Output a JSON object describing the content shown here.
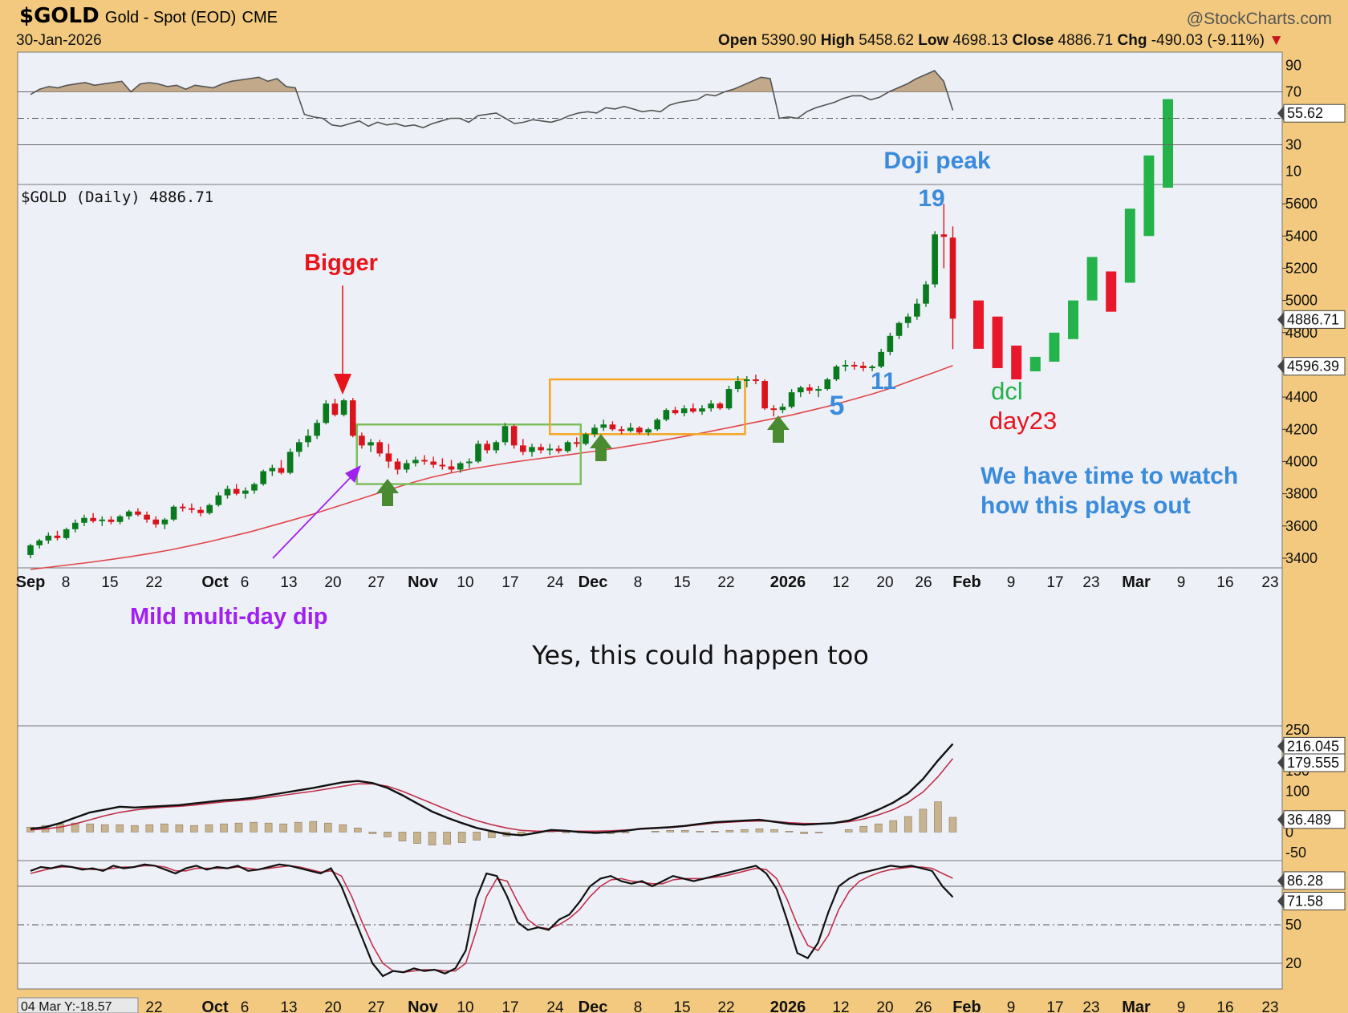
{
  "header": {
    "symbol": "$GOLD",
    "description": "Gold - Spot (EOD)",
    "exchange": "CME",
    "brand": "@StockCharts.com",
    "date": "30-Jan-2026",
    "open_label": "Open",
    "open": "5390.90",
    "high_label": "High",
    "high": "5458.62",
    "low_label": "Low",
    "low": "4698.13",
    "close_label": "Close",
    "close": "4886.71",
    "chg_label": "Chg",
    "chg": "-490.03 (-9.11%)"
  },
  "colors": {
    "panel_bg": "#eef0f8",
    "frame_bg": "#f2c97e",
    "up_candle": "#0a7a1e",
    "down_candle": "#d8141c",
    "proj_up": "#23b34a",
    "proj_down": "#e8172a",
    "ma": "#e04848",
    "green_box": "#7cbf5a",
    "orange_box": "#f5a623",
    "annot_blue": "#3a8bdc",
    "annot_red": "#e8141c",
    "annot_green": "#23b34a",
    "annot_purple": "#a020f0"
  },
  "chart_data": {
    "type": "candlestick",
    "price_label": "$GOLD (Daily) 4886.71",
    "x_labels": [
      "Sep",
      "8",
      "15",
      "22",
      "Oct",
      "6",
      "13",
      "20",
      "27",
      "Nov",
      "10",
      "17",
      "24",
      "Dec",
      "8",
      "15",
      "22",
      "2026",
      "12",
      "20",
      "26",
      "Feb",
      "9",
      "17",
      "23",
      "Mar",
      "9",
      "16",
      "23"
    ],
    "bold_x_labels": [
      "Sep",
      "Oct",
      "Nov",
      "Dec",
      "2026",
      "Feb",
      "Mar"
    ],
    "bottom_x_labels": [
      "22",
      "Oct",
      "6",
      "13",
      "20",
      "27",
      "Nov",
      "10",
      "17",
      "24",
      "Dec",
      "8",
      "15",
      "22",
      "2026",
      "12",
      "20",
      "26",
      "Feb",
      "9",
      "17",
      "23",
      "Mar",
      "9",
      "16",
      "23"
    ],
    "bottom_left_label": "04 Mar Y:-18.57",
    "price_ylim": [
      3340,
      5720
    ],
    "price_ticks": [
      3400,
      3600,
      3800,
      4000,
      4200,
      4400,
      4600,
      4800,
      5000,
      5200,
      5400,
      5600
    ],
    "price_tick_labels": [
      "3400",
      "3600",
      "3800",
      "4000",
      "4200",
      "4400",
      "",
      "4800",
      "5000",
      "5200",
      "5400",
      "5600"
    ],
    "last_price_label": "4886.71",
    "ma_value_label": "4596.39",
    "candles": [
      [
        3420,
        3490,
        3400,
        3480
      ],
      [
        3480,
        3520,
        3460,
        3510
      ],
      [
        3510,
        3560,
        3490,
        3540
      ],
      [
        3540,
        3570,
        3510,
        3525
      ],
      [
        3525,
        3590,
        3515,
        3580
      ],
      [
        3580,
        3640,
        3560,
        3620
      ],
      [
        3620,
        3670,
        3600,
        3650
      ],
      [
        3650,
        3680,
        3620,
        3630
      ],
      [
        3630,
        3660,
        3600,
        3640
      ],
      [
        3640,
        3660,
        3610,
        3625
      ],
      [
        3625,
        3670,
        3610,
        3660
      ],
      [
        3660,
        3700,
        3640,
        3690
      ],
      [
        3690,
        3710,
        3660,
        3670
      ],
      [
        3670,
        3690,
        3620,
        3640
      ],
      [
        3640,
        3660,
        3590,
        3610
      ],
      [
        3610,
        3650,
        3580,
        3640
      ],
      [
        3640,
        3730,
        3630,
        3720
      ],
      [
        3720,
        3740,
        3690,
        3710
      ],
      [
        3710,
        3740,
        3680,
        3700
      ],
      [
        3700,
        3720,
        3660,
        3680
      ],
      [
        3680,
        3740,
        3670,
        3730
      ],
      [
        3730,
        3810,
        3720,
        3790
      ],
      [
        3790,
        3850,
        3770,
        3830
      ],
      [
        3830,
        3860,
        3790,
        3800
      ],
      [
        3800,
        3840,
        3770,
        3820
      ],
      [
        3820,
        3870,
        3800,
        3860
      ],
      [
        3860,
        3950,
        3850,
        3940
      ],
      [
        3940,
        3980,
        3910,
        3960
      ],
      [
        3960,
        4010,
        3920,
        3930
      ],
      [
        3930,
        4080,
        3920,
        4060
      ],
      [
        4060,
        4140,
        4030,
        4120
      ],
      [
        4120,
        4200,
        4090,
        4160
      ],
      [
        4160,
        4260,
        4140,
        4240
      ],
      [
        4240,
        4380,
        4230,
        4360
      ],
      [
        4360,
        4390,
        4280,
        4290
      ],
      [
        4290,
        4390,
        4280,
        4380
      ],
      [
        4380,
        4395,
        4150,
        4160
      ],
      [
        4160,
        4180,
        4080,
        4100
      ],
      [
        4100,
        4140,
        4060,
        4120
      ],
      [
        4120,
        4135,
        4030,
        4050
      ],
      [
        4050,
        4110,
        3960,
        4000
      ],
      [
        4000,
        4020,
        3920,
        3950
      ],
      [
        3950,
        4010,
        3930,
        3990
      ],
      [
        3990,
        4030,
        3970,
        4010
      ],
      [
        4010,
        4040,
        3980,
        4000
      ],
      [
        4000,
        4030,
        3960,
        3980
      ],
      [
        3980,
        4020,
        3950,
        3970
      ],
      [
        3970,
        4010,
        3930,
        3950
      ],
      [
        3950,
        4000,
        3930,
        3990
      ],
      [
        3990,
        4020,
        3960,
        4000
      ],
      [
        4000,
        4130,
        3990,
        4110
      ],
      [
        4110,
        4130,
        4050,
        4070
      ],
      [
        4070,
        4130,
        4050,
        4120
      ],
      [
        4120,
        4240,
        4100,
        4220
      ],
      [
        4220,
        4230,
        4080,
        4100
      ],
      [
        4100,
        4140,
        4040,
        4060
      ],
      [
        4060,
        4110,
        4030,
        4090
      ],
      [
        4090,
        4110,
        4050,
        4070
      ],
      [
        4070,
        4110,
        4040,
        4080
      ],
      [
        4080,
        4100,
        4050,
        4065
      ],
      [
        4065,
        4130,
        4055,
        4120
      ],
      [
        4120,
        4150,
        4090,
        4110
      ],
      [
        4110,
        4180,
        4100,
        4170
      ],
      [
        4170,
        4230,
        4150,
        4210
      ],
      [
        4210,
        4260,
        4190,
        4230
      ],
      [
        4230,
        4250,
        4190,
        4200
      ],
      [
        4200,
        4220,
        4170,
        4190
      ],
      [
        4190,
        4240,
        4180,
        4210
      ],
      [
        4210,
        4220,
        4170,
        4180
      ],
      [
        4180,
        4210,
        4160,
        4200
      ],
      [
        4200,
        4270,
        4190,
        4260
      ],
      [
        4260,
        4330,
        4250,
        4320
      ],
      [
        4320,
        4340,
        4290,
        4300
      ],
      [
        4300,
        4350,
        4280,
        4330
      ],
      [
        4330,
        4360,
        4300,
        4310
      ],
      [
        4310,
        4350,
        4290,
        4330
      ],
      [
        4330,
        4380,
        4310,
        4360
      ],
      [
        4360,
        4370,
        4320,
        4330
      ],
      [
        4330,
        4470,
        4320,
        4450
      ],
      [
        4450,
        4530,
        4430,
        4500
      ],
      [
        4500,
        4530,
        4460,
        4510
      ],
      [
        4510,
        4540,
        4480,
        4500
      ],
      [
        4500,
        4510,
        4320,
        4330
      ],
      [
        4330,
        4350,
        4280,
        4320
      ],
      [
        4320,
        4360,
        4300,
        4340
      ],
      [
        4340,
        4450,
        4330,
        4430
      ],
      [
        4430,
        4470,
        4400,
        4460
      ],
      [
        4460,
        4480,
        4420,
        4440
      ],
      [
        4440,
        4470,
        4400,
        4450
      ],
      [
        4450,
        4520,
        4440,
        4510
      ],
      [
        4510,
        4600,
        4500,
        4590
      ],
      [
        4590,
        4630,
        4560,
        4600
      ],
      [
        4600,
        4620,
        4570,
        4595
      ],
      [
        4595,
        4620,
        4560,
        4580
      ],
      [
        4580,
        4600,
        4560,
        4590
      ],
      [
        4590,
        4700,
        4580,
        4680
      ],
      [
        4680,
        4800,
        4660,
        4780
      ],
      [
        4780,
        4870,
        4760,
        4860
      ],
      [
        4860,
        4920,
        4830,
        4900
      ],
      [
        4900,
        5010,
        4880,
        4980
      ],
      [
        4980,
        5120,
        4960,
        5100
      ],
      [
        5100,
        5430,
        5080,
        5410
      ],
      [
        5410,
        5600,
        5200,
        5395
      ],
      [
        5390,
        5460,
        4698,
        4887
      ]
    ],
    "projection": [
      [
        5000,
        4700
      ],
      [
        4900,
        4580
      ],
      [
        4720,
        4510
      ],
      [
        4560,
        4650
      ],
      [
        4620,
        4800
      ],
      [
        4760,
        5000
      ],
      [
        5000,
        5270
      ],
      [
        5180,
        4930
      ],
      [
        5110,
        5570
      ],
      [
        5400,
        5900
      ],
      [
        5700,
        6250
      ]
    ],
    "ma_values": [
      3330,
      3345,
      3360,
      3375,
      3392,
      3410,
      3430,
      3452,
      3478,
      3505,
      3535,
      3565,
      3600,
      3635,
      3670,
      3710,
      3750,
      3790,
      3830,
      3868,
      3902,
      3930,
      3955,
      3975,
      3995,
      4012,
      4028,
      4045,
      4062,
      4080,
      4100,
      4120,
      4142,
      4165,
      4190,
      4215,
      4240,
      4265,
      4290,
      4320,
      4350,
      4385,
      4420,
      4460,
      4505,
      4550,
      4596
    ],
    "rsi": {
      "ylim": [
        0,
        100
      ],
      "ticks": [
        "90",
        "70",
        "30",
        "10"
      ],
      "levels": [
        70,
        30
      ],
      "midline": 50,
      "last_value_label": "55.62",
      "values": [
        68,
        72,
        74,
        73,
        75,
        76,
        77,
        75,
        76,
        77,
        78,
        70,
        76,
        77,
        76,
        74,
        75,
        72,
        75,
        74,
        73,
        76,
        78,
        79,
        80,
        81,
        78,
        80,
        74,
        73,
        53,
        51,
        50,
        45,
        44,
        46,
        48,
        44,
        47,
        45,
        46,
        44,
        45,
        43,
        46,
        48,
        50,
        50,
        47,
        52,
        53,
        54,
        50,
        46,
        47,
        49,
        48,
        47,
        49,
        52,
        54,
        55,
        54,
        58,
        57,
        59,
        57,
        55,
        56,
        55,
        60,
        62,
        63,
        64,
        68,
        67,
        70,
        72,
        75,
        78,
        81,
        80,
        50,
        51,
        50,
        55,
        58,
        60,
        62,
        65,
        67,
        67,
        64,
        66,
        70,
        73,
        76,
        80,
        83,
        86,
        78,
        56
      ]
    },
    "macd": {
      "ylim": [
        -70,
        260
      ],
      "ticks": [
        "250",
        "150",
        "100",
        "0",
        "-50"
      ],
      "label_216": "216.045",
      "label_179": "179.555",
      "label_36": "36.489",
      "macd": [
        8,
        12,
        22,
        35,
        48,
        55,
        62,
        60,
        62,
        64,
        66,
        70,
        74,
        78,
        80,
        84,
        90,
        96,
        102,
        108,
        115,
        122,
        125,
        120,
        108,
        90,
        70,
        50,
        35,
        22,
        10,
        2,
        -5,
        -8,
        -2,
        5,
        3,
        0,
        -2,
        0,
        3,
        8,
        10,
        12,
        15,
        20,
        24,
        26,
        28,
        30,
        25,
        20,
        18,
        20,
        22,
        28,
        40,
        55,
        72,
        95,
        130,
        175,
        216
      ],
      "signal": [
        5,
        8,
        12,
        20,
        30,
        40,
        48,
        54,
        58,
        61,
        63,
        66,
        70,
        74,
        77,
        80,
        85,
        90,
        95,
        100,
        106,
        112,
        118,
        118,
        112,
        100,
        85,
        70,
        55,
        40,
        28,
        18,
        10,
        4,
        2,
        2,
        2,
        2,
        2,
        3,
        5,
        7,
        9,
        11,
        14,
        18,
        22,
        24,
        26,
        27,
        26,
        23,
        21,
        21,
        22,
        25,
        32,
        42,
        55,
        73,
        98,
        135,
        180
      ],
      "hist": [
        12,
        16,
        20,
        22,
        20,
        18,
        18,
        16,
        18,
        20,
        18,
        16,
        18,
        20,
        22,
        24,
        22,
        20,
        24,
        26,
        22,
        18,
        10,
        -4,
        -12,
        -22,
        -28,
        -32,
        -30,
        -26,
        -20,
        -14,
        -10,
        -6,
        -2,
        2,
        -2,
        -2,
        -4,
        -4,
        -2,
        0,
        2,
        4,
        4,
        2,
        2,
        4,
        6,
        8,
        6,
        2,
        -4,
        -2,
        0,
        6,
        14,
        20,
        28,
        38,
        56,
        74,
        36
      ]
    },
    "stoch": {
      "ylim": [
        0,
        100
      ],
      "ticks": [
        "50",
        "20"
      ],
      "levels": [
        80,
        20
      ],
      "midline": 50,
      "label_86": "86.28",
      "label_71": "71.58",
      "fast": [
        92,
        95,
        94,
        96,
        95,
        93,
        94,
        92,
        96,
        94,
        95,
        97,
        96,
        93,
        90,
        94,
        96,
        93,
        95,
        94,
        96,
        92,
        93,
        95,
        97,
        96,
        94,
        92,
        90,
        94,
        80,
        60,
        40,
        20,
        10,
        14,
        13,
        16,
        14,
        15,
        12,
        16,
        30,
        70,
        90,
        88,
        72,
        52,
        46,
        48,
        46,
        54,
        58,
        68,
        80,
        86,
        88,
        84,
        82,
        84,
        80,
        84,
        88,
        86,
        84,
        86,
        88,
        90,
        92,
        94,
        96,
        90,
        78,
        54,
        28,
        24,
        36,
        60,
        80,
        86,
        90,
        92,
        94,
        96,
        95,
        96,
        94,
        92,
        80,
        71.58
      ],
      "slow": [
        90,
        92,
        94,
        95,
        95,
        94,
        93,
        93,
        94,
        95,
        95,
        96,
        96,
        95,
        92,
        92,
        94,
        94,
        94,
        94,
        95,
        94,
        93,
        94,
        95,
        96,
        95,
        93,
        91,
        92,
        88,
        72,
        52,
        34,
        20,
        14,
        13,
        14,
        15,
        15,
        14,
        14,
        20,
        45,
        72,
        86,
        84,
        68,
        54,
        48,
        47,
        50,
        55,
        62,
        72,
        80,
        85,
        86,
        84,
        83,
        82,
        82,
        85,
        86,
        86,
        86,
        87,
        88,
        90,
        92,
        94,
        93,
        86,
        70,
        50,
        34,
        30,
        42,
        62,
        76,
        84,
        88,
        91,
        93,
        94,
        95,
        95,
        94,
        90,
        86.28
      ]
    },
    "annotations": {
      "bigger": "Bigger",
      "doji_peak": "Doji peak",
      "n19": "19",
      "n11": "11",
      "n5": "5",
      "dcl": "dcl",
      "day23": "day23",
      "watch_line1": "We have time to watch",
      "watch_line2": "how this plays out",
      "mild_dip": "Mild multi-day dip",
      "caption": "Yes, this could happen too"
    }
  }
}
